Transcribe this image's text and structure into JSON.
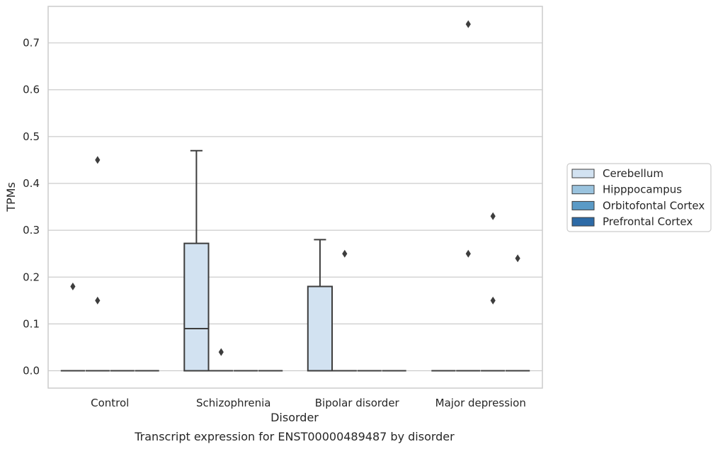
{
  "chart_data": {
    "type": "box",
    "xlabel": "Disorder",
    "ylabel": "TPMs",
    "caption": "Transcript expression for ENST00000489487 by disorder",
    "categories": [
      "Control",
      "Schizophrenia",
      "Bipolar disorder",
      "Major depression"
    ],
    "y_ticks": [
      0.0,
      0.1,
      0.2,
      0.3,
      0.4,
      0.5,
      0.6,
      0.7
    ],
    "y_tick_labels": [
      "0.0",
      "0.1",
      "0.2",
      "0.3",
      "0.4",
      "0.5",
      "0.6",
      "0.7"
    ],
    "ylim": [
      -0.037,
      0.778
    ],
    "grid": "horizontal",
    "legend": {
      "placement": "center-right",
      "entries": [
        "Cerebellum",
        "Hipppocampus",
        "Orbitofontal Cortex",
        "Prefrontal Cortex"
      ]
    },
    "series": [
      {
        "name": "Cerebellum",
        "color": "#d2e2f1",
        "boxes": [
          {
            "category": "Control",
            "q1": 0,
            "median": 0,
            "q3": 0,
            "whisker_low": 0,
            "whisker_high": 0,
            "outliers": [
              0.18
            ]
          },
          {
            "category": "Schizophrenia",
            "q1": 0,
            "median": 0.09,
            "q3": 0.272,
            "whisker_low": 0,
            "whisker_high": 0.47,
            "outliers": []
          },
          {
            "category": "Bipolar disorder",
            "q1": 0,
            "median": 0,
            "q3": 0.18,
            "whisker_low": 0,
            "whisker_high": 0.28,
            "outliers": []
          },
          {
            "category": "Major depression",
            "q1": 0,
            "median": 0,
            "q3": 0,
            "whisker_low": 0,
            "whisker_high": 0,
            "outliers": []
          }
        ]
      },
      {
        "name": "Hipppocampus",
        "color": "#9ac3de",
        "boxes": [
          {
            "category": "Control",
            "q1": 0,
            "median": 0,
            "q3": 0,
            "whisker_low": 0,
            "whisker_high": 0,
            "outliers": [
              0.45,
              0.15
            ]
          },
          {
            "category": "Schizophrenia",
            "q1": 0,
            "median": 0,
            "q3": 0,
            "whisker_low": 0,
            "whisker_high": 0,
            "outliers": [
              0.04
            ]
          },
          {
            "category": "Bipolar disorder",
            "q1": 0,
            "median": 0,
            "q3": 0,
            "whisker_low": 0,
            "whisker_high": 0,
            "outliers": [
              0.25
            ]
          },
          {
            "category": "Major depression",
            "q1": 0,
            "median": 0,
            "q3": 0,
            "whisker_low": 0,
            "whisker_high": 0,
            "outliers": [
              0.74,
              0.25
            ]
          }
        ]
      },
      {
        "name": "Orbitofontal Cortex",
        "color": "#5a9ac6",
        "boxes": [
          {
            "category": "Control",
            "q1": 0,
            "median": 0,
            "q3": 0,
            "whisker_low": 0,
            "whisker_high": 0,
            "outliers": []
          },
          {
            "category": "Schizophrenia",
            "q1": 0,
            "median": 0,
            "q3": 0,
            "whisker_low": 0,
            "whisker_high": 0,
            "outliers": []
          },
          {
            "category": "Bipolar disorder",
            "q1": 0,
            "median": 0,
            "q3": 0,
            "whisker_low": 0,
            "whisker_high": 0,
            "outliers": []
          },
          {
            "category": "Major depression",
            "q1": 0,
            "median": 0,
            "q3": 0,
            "whisker_low": 0,
            "whisker_high": 0,
            "outliers": [
              0.33,
              0.15
            ]
          }
        ]
      },
      {
        "name": "Prefrontal Cortex",
        "color": "#2d6aa6",
        "boxes": [
          {
            "category": "Control",
            "q1": 0,
            "median": 0,
            "q3": 0,
            "whisker_low": 0,
            "whisker_high": 0,
            "outliers": []
          },
          {
            "category": "Schizophrenia",
            "q1": 0,
            "median": 0,
            "q3": 0,
            "whisker_low": 0,
            "whisker_high": 0,
            "outliers": []
          },
          {
            "category": "Bipolar disorder",
            "q1": 0,
            "median": 0,
            "q3": 0,
            "whisker_low": 0,
            "whisker_high": 0,
            "outliers": []
          },
          {
            "category": "Major depression",
            "q1": 0,
            "median": 0,
            "q3": 0,
            "whisker_low": 0,
            "whisker_high": 0,
            "outliers": [
              0.24
            ]
          }
        ]
      }
    ]
  }
}
